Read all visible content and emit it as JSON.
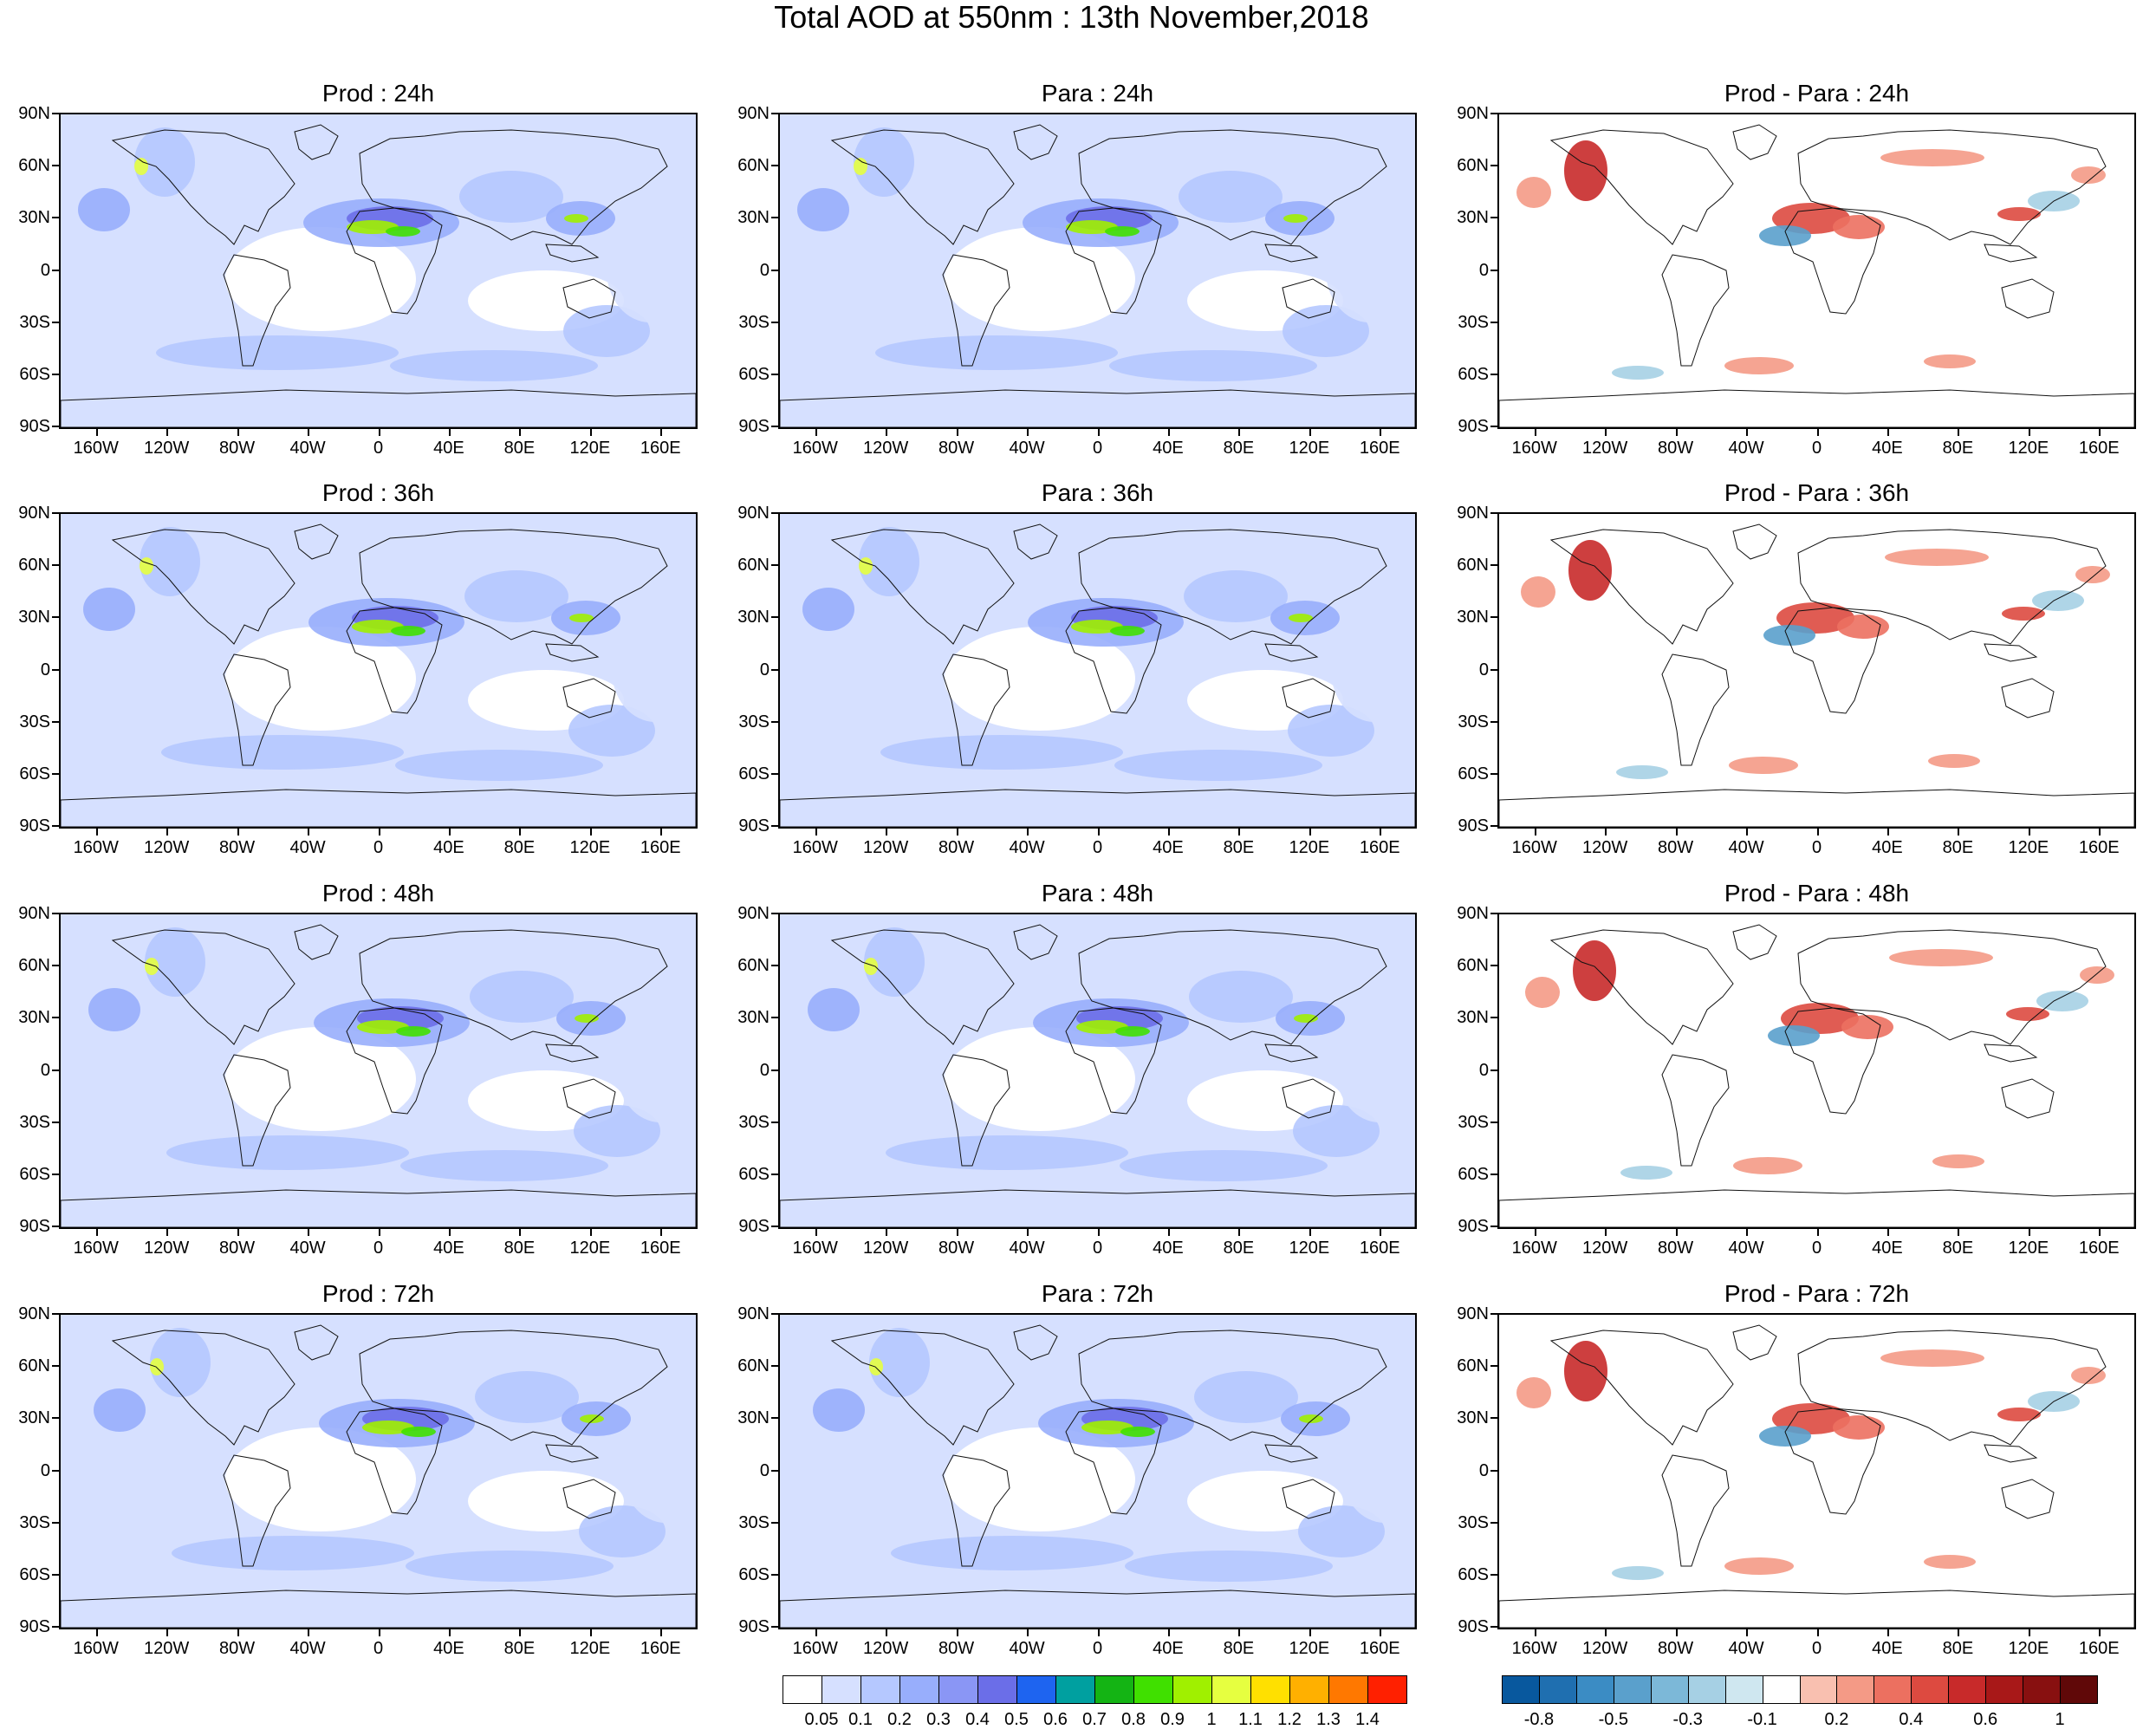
{
  "title": "Total AOD at 550nm : 13th November,2018",
  "lat_labels": [
    "90N",
    "60N",
    "30N",
    "0",
    "30S",
    "60S",
    "90S"
  ],
  "lon_labels": [
    "160W",
    "120W",
    "80W",
    "40W",
    "0",
    "40E",
    "80E",
    "120E",
    "160E"
  ],
  "panels": [
    {
      "title": "Prod : 24h",
      "type": "aod"
    },
    {
      "title": "Para : 24h",
      "type": "aod"
    },
    {
      "title": "Prod - Para : 24h",
      "type": "diff"
    },
    {
      "title": "Prod : 36h",
      "type": "aod"
    },
    {
      "title": "Para : 36h",
      "type": "aod"
    },
    {
      "title": "Prod - Para : 36h",
      "type": "diff"
    },
    {
      "title": "Prod : 48h",
      "type": "aod"
    },
    {
      "title": "Para : 48h",
      "type": "aod"
    },
    {
      "title": "Prod - Para : 48h",
      "type": "diff"
    },
    {
      "title": "Prod : 72h",
      "type": "aod"
    },
    {
      "title": "Para : 72h",
      "type": "aod"
    },
    {
      "title": "Prod - Para : 72h",
      "type": "diff"
    }
  ],
  "aod_colorbar": {
    "labels": [
      "0.05",
      "0.1",
      "0.2",
      "0.3",
      "0.4",
      "0.5",
      "0.6",
      "0.7",
      "0.8",
      "0.9",
      "1",
      "1.1",
      "1.2",
      "1.3",
      "1.4"
    ],
    "colors": [
      "#ffffff",
      "#d6e0ff",
      "#b5c8ff",
      "#98aefc",
      "#8a96f5",
      "#6b6ee8",
      "#1e64f0",
      "#00a0a0",
      "#14b414",
      "#40e000",
      "#a0f000",
      "#e6ff40",
      "#ffe000",
      "#ffb000",
      "#ff7800",
      "#ff2000"
    ]
  },
  "diff_colorbar": {
    "labels": [
      "-0.8",
      "",
      "-0.5",
      "",
      "-0.3",
      "",
      "-0.1",
      "",
      "0.2",
      "",
      "0.4",
      "",
      "0.6",
      "",
      "1"
    ],
    "colors": [
      "#08589e",
      "#1f6fb0",
      "#3b8cc4",
      "#5aa0cc",
      "#7cb8d8",
      "#a6d0e4",
      "#cfe7f0",
      "#ffffff",
      "#f9c0b0",
      "#f49a86",
      "#ec7060",
      "#dd4a40",
      "#c82a2a",
      "#a81818",
      "#881010",
      "#600808"
    ]
  }
}
